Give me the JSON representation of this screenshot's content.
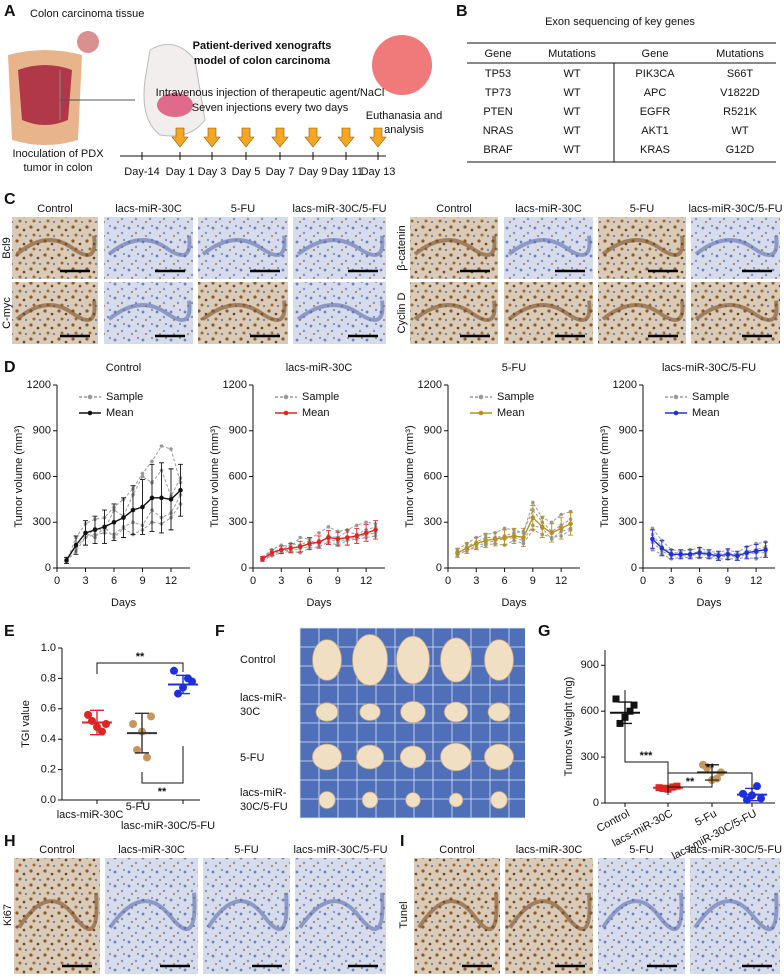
{
  "panel_labels": [
    "A",
    "B",
    "C",
    "D",
    "E",
    "F",
    "G",
    "H",
    "I"
  ],
  "panel_a": {
    "tissue_label": "Colon carcinoma tissue",
    "title": [
      "Patient-derived xenografts",
      "model of colon carcinoma"
    ],
    "treatment": [
      "Intravenous injection of therapeutic agent/NaCl",
      "Seven injections every two days"
    ],
    "endpoint": [
      "Euthanasia and",
      "analysis"
    ],
    "inoculation": [
      "Inoculation of PDX",
      "tumor in colon"
    ],
    "days": [
      "Day-14",
      "Day 1",
      "Day 3",
      "Day 5",
      "Day 7",
      "Day 9",
      "Day 11",
      "Day 13"
    ]
  },
  "panel_b": {
    "title": "Exon sequencing of key genes",
    "header": [
      "Gene",
      "Mutations",
      "Gene",
      "Mutations"
    ],
    "rows": [
      [
        "TP53",
        "WT",
        "PIK3CA",
        "S66T"
      ],
      [
        "TP73",
        "WT",
        "APC",
        "V1822D"
      ],
      [
        "PTEN",
        "WT",
        "EGFR",
        "R521K"
      ],
      [
        "NRAS",
        "WT",
        "AKT1",
        "WT"
      ],
      [
        "BRAF",
        "WT",
        "KRAS",
        "G12D"
      ]
    ]
  },
  "panel_c": {
    "columns": [
      "Control",
      "lacs-miR-30C",
      "5-FU",
      "lacs-miR-30C/5-FU"
    ],
    "left_rows": [
      "Bcl9",
      "C-myc"
    ],
    "right_rows": [
      "β-catenin",
      "Cyclin D"
    ]
  },
  "chart_data": [
    {
      "type": "line",
      "title": "Control",
      "xlabel": "Days",
      "ylabel": "Tumor volume (mm³)",
      "x": [
        1,
        2,
        3,
        4,
        5,
        6,
        7,
        8,
        9,
        10,
        11,
        12,
        13
      ],
      "xlim": [
        0,
        14
      ],
      "xticks": [
        0,
        3,
        6,
        9,
        12
      ],
      "ylim": [
        0,
        1200
      ],
      "yticks": [
        0,
        300,
        600,
        900,
        1200
      ],
      "legend": "upper left",
      "series": [
        {
          "name": "Sample",
          "color": "#999999",
          "style": "dashed",
          "lines": [
            [
              40,
              200,
              290,
              320,
              330,
              400,
              450,
              520,
              620,
              700,
              800,
              780,
              560
            ],
            [
              60,
              140,
              200,
              260,
              250,
              380,
              340,
              480,
              600,
              560,
              640,
              470,
              590
            ],
            [
              45,
              110,
              200,
              220,
              230,
              220,
              270,
              300,
              280,
              380,
              330,
              360,
              480
            ],
            [
              55,
              150,
              230,
              200,
              270,
              200,
              260,
              220,
              250,
              300,
              290,
              330,
              420
            ]
          ]
        },
        {
          "name": "Mean",
          "color": "#111111",
          "style": "solid",
          "values": [
            50,
            150,
            230,
            250,
            270,
            300,
            330,
            380,
            400,
            460,
            460,
            450,
            510
          ],
          "errors": [
            20,
            60,
            80,
            90,
            110,
            120,
            130,
            160,
            180,
            220,
            230,
            200,
            170
          ]
        }
      ]
    },
    {
      "type": "line",
      "title": "lacs-miR-30C",
      "xlabel": "Days",
      "ylabel": "Tumor volume (mm³)",
      "x": [
        1,
        2,
        3,
        4,
        5,
        6,
        7,
        8,
        9,
        10,
        11,
        12,
        13
      ],
      "xlim": [
        0,
        14
      ],
      "xticks": [
        0,
        3,
        6,
        9,
        12
      ],
      "ylim": [
        0,
        1200
      ],
      "yticks": [
        0,
        300,
        600,
        900,
        1200
      ],
      "legend": "upper left",
      "series": [
        {
          "name": "Sample",
          "color": "#999999",
          "style": "dashed",
          "lines": [
            [
              70,
              120,
              150,
              140,
              200,
              190,
              230,
              270,
              240,
              250,
              280,
              300,
              290
            ],
            [
              55,
              90,
              110,
              160,
              150,
              180,
              160,
              210,
              200,
              240,
              220,
              250,
              270
            ],
            [
              65,
              110,
              120,
              110,
              130,
              140,
              180,
              190,
              170,
              190,
              200,
              220,
              230
            ],
            [
              50,
              80,
              100,
              110,
              100,
              130,
              140,
              170,
              150,
              180,
              190,
              200,
              210
            ]
          ]
        },
        {
          "name": "Mean",
          "color": "#e02424",
          "style": "solid",
          "values": [
            60,
            100,
            120,
            130,
            140,
            160,
            170,
            200,
            190,
            200,
            210,
            230,
            250
          ],
          "errors": [
            15,
            20,
            25,
            30,
            35,
            40,
            40,
            45,
            45,
            50,
            50,
            55,
            60
          ]
        }
      ]
    },
    {
      "type": "line",
      "title": "5-FU",
      "xlabel": "Days",
      "ylabel": "Tumor volume (mm³)",
      "x": [
        1,
        2,
        3,
        4,
        5,
        6,
        7,
        8,
        9,
        10,
        11,
        12,
        13
      ],
      "xlim": [
        0,
        14
      ],
      "xticks": [
        0,
        3,
        6,
        9,
        12
      ],
      "ylim": [
        0,
        1200
      ],
      "yticks": [
        0,
        300,
        600,
        900,
        1200
      ],
      "legend": "upper left",
      "series": [
        {
          "name": "Sample",
          "color": "#999999",
          "style": "dashed",
          "lines": [
            [
              120,
              160,
              200,
              220,
              230,
              260,
              250,
              230,
              430,
              330,
              300,
              350,
              370
            ],
            [
              90,
              140,
              170,
              200,
              200,
              210,
              230,
              240,
              380,
              300,
              240,
              280,
              320
            ],
            [
              100,
              110,
              150,
              160,
              180,
              190,
              200,
              180,
              280,
              260,
              190,
              240,
              260
            ],
            [
              80,
              120,
              130,
              150,
              160,
              150,
              180,
              160,
              250,
              220,
              200,
              210,
              250
            ]
          ]
        },
        {
          "name": "Mean",
          "color": "#b8901c",
          "style": "solid",
          "values": [
            100,
            130,
            160,
            180,
            190,
            200,
            210,
            200,
            330,
            270,
            230,
            260,
            290
          ],
          "errors": [
            30,
            35,
            40,
            45,
            45,
            50,
            50,
            60,
            80,
            70,
            60,
            70,
            75
          ]
        }
      ]
    },
    {
      "type": "line",
      "title": "lacs-miR-30C/5-FU",
      "xlabel": "Days",
      "ylabel": "Tumor volume (mm³)",
      "x": [
        1,
        2,
        3,
        4,
        5,
        6,
        7,
        8,
        9,
        10,
        11,
        12,
        13
      ],
      "xlim": [
        0,
        14
      ],
      "xticks": [
        0,
        3,
        6,
        9,
        12
      ],
      "ylim": [
        0,
        1200
      ],
      "yticks": [
        0,
        300,
        600,
        900,
        1200
      ],
      "legend": "upper left",
      "series": [
        {
          "name": "Sample",
          "color": "#999999",
          "style": "dashed",
          "lines": [
            [
              260,
              180,
              120,
              110,
              120,
              130,
              110,
              100,
              120,
              100,
              140,
              160,
              170
            ],
            [
              220,
              140,
              100,
              100,
              90,
              110,
              100,
              90,
              100,
              90,
              110,
              120,
              140
            ],
            [
              170,
              110,
              80,
              80,
              80,
              90,
              80,
              70,
              80,
              70,
              90,
              100,
              100
            ],
            [
              120,
              90,
              60,
              70,
              70,
              70,
              70,
              60,
              60,
              60,
              70,
              60,
              80
            ]
          ]
        },
        {
          "name": "Mean",
          "color": "#1f2ee0",
          "style": "solid",
          "values": [
            190,
            130,
            90,
            90,
            90,
            100,
            90,
            80,
            90,
            80,
            100,
            110,
            120
          ],
          "errors": [
            60,
            50,
            30,
            30,
            30,
            35,
            30,
            30,
            35,
            30,
            40,
            45,
            50
          ]
        }
      ]
    },
    {
      "type": "dot",
      "ylabel": "TGI value",
      "categories": [
        "lacs-miR-30C",
        "5-FU",
        "lasc-miR-30C/5-FU"
      ],
      "values": [
        [
          0.56,
          0.5,
          0.48,
          0.52,
          0.45
        ],
        [
          0.5,
          0.55,
          0.45,
          0.33,
          0.28
        ],
        [
          0.85,
          0.78,
          0.74,
          0.7,
          0.8
        ]
      ],
      "means": [
        0.51,
        0.44,
        0.76
      ],
      "errors": [
        0.08,
        0.13,
        0.06
      ],
      "colors": [
        "#e02424",
        "#c8965a",
        "#1f2ee0"
      ],
      "markers": [
        "circle",
        "circle",
        "circle"
      ],
      "ylim": [
        0,
        1
      ],
      "yticks": [
        {
          "value": 0,
          "label": "0.0"
        },
        0.2,
        0.4,
        0.6,
        0.8,
        {
          "value": 1,
          "label": "1.0"
        }
      ],
      "annotations": [
        "**",
        "**"
      ]
    },
    {
      "type": "dot",
      "ylabel": "Tumors Weight (mg)",
      "categories": [
        "Control",
        "lacs-miR-30C",
        "5-Fu",
        "lacs-miR-30C/5-FU"
      ],
      "values": [
        [
          680,
          640,
          560,
          520,
          600
        ],
        [
          100,
          110,
          90,
          95,
          105
        ],
        [
          250,
          200,
          150,
          230,
          160
        ],
        [
          60,
          30,
          50,
          20,
          110
        ]
      ],
      "means": [
        590,
        100,
        200,
        55
      ],
      "errors": [
        70,
        15,
        50,
        40
      ],
      "colors": [
        "#111111",
        "#e02424",
        "#c8965a",
        "#1f2ee0"
      ],
      "markers": [
        "square",
        "square",
        "circle",
        "circle"
      ],
      "ylim": [
        0,
        1000
      ],
      "yticks": [
        0,
        300,
        600,
        900
      ],
      "annotations": [
        "***",
        "**",
        "**"
      ]
    }
  ],
  "panel_f": {
    "rows": [
      [
        "Control"
      ],
      [
        "lacs-miR-",
        "30C"
      ],
      [
        "5-FU"
      ],
      [
        "lacs-miR-",
        "30C/5-FU"
      ]
    ]
  },
  "panel_h": {
    "columns": [
      "Control",
      "lacs-miR-30C",
      "5-FU",
      "lacs-miR-30C/5-FU"
    ],
    "row": "Ki67"
  },
  "panel_i": {
    "columns": [
      "Control",
      "lacs-miR-30C",
      "5-FU",
      "lacs-miR-30C/5-FU"
    ],
    "row": "Tunel"
  }
}
